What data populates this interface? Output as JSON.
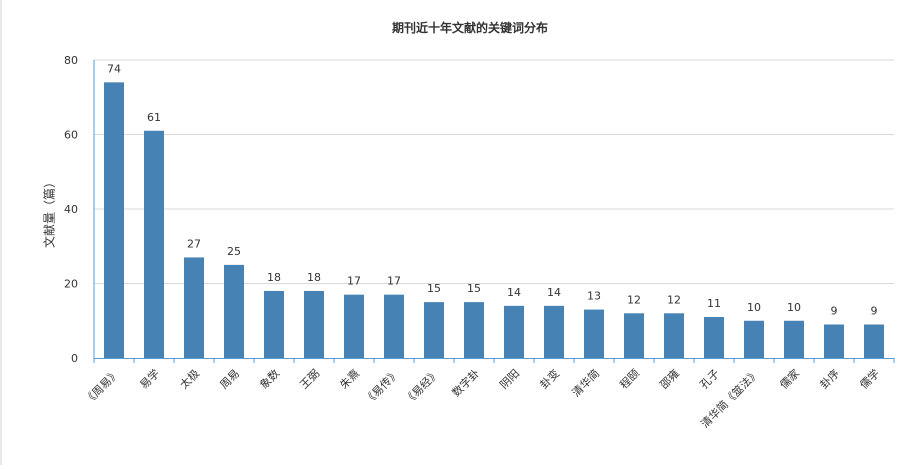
{
  "chart_data": {
    "type": "bar",
    "title": "期刊近十年文献的关键词分布",
    "xlabel": "",
    "ylabel": "文献量（篇）",
    "ylim": [
      0,
      80
    ],
    "yticks": [
      0,
      20,
      40,
      60,
      80
    ],
    "grid": true,
    "legend": "none",
    "categories": [
      "《周易》",
      "易学",
      "太极",
      "周易",
      "象数",
      "王弼",
      "朱熹",
      "《易传》",
      "《易经》",
      "数字卦",
      "阴阳",
      "卦变",
      "清华简",
      "程颐",
      "邵雍",
      "孔子",
      "清华简《筮法》",
      "儒家",
      "卦序",
      "儒学"
    ],
    "values": [
      74,
      61,
      27,
      25,
      18,
      18,
      17,
      17,
      15,
      15,
      14,
      14,
      13,
      12,
      12,
      11,
      10,
      10,
      9,
      9
    ],
    "colors": {
      "bar": "#4682b4",
      "axis": "#5b9bd5",
      "grid": "#d9d9d9",
      "text": "#333333"
    }
  }
}
